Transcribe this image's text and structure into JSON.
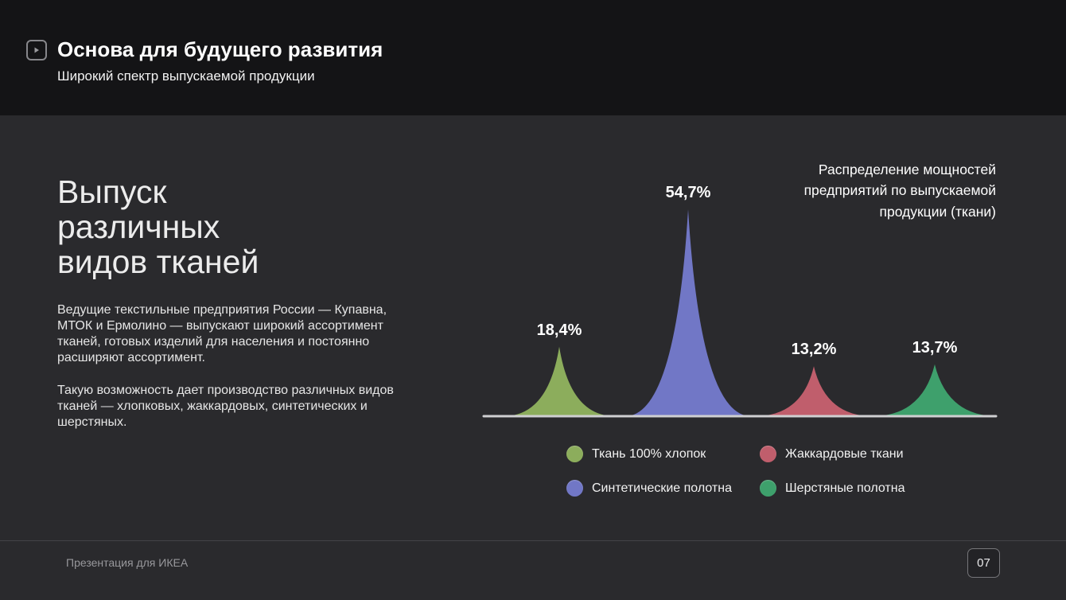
{
  "header": {
    "title": "Основа для будущего развития",
    "subtitle": "Широкий спектр выпускаемой продукции"
  },
  "main": {
    "heading_lines": [
      "Выпуск",
      "различных",
      "видов тканей"
    ],
    "paragraph1": "Ведущие текстильные предприятия России — Купавна, МТОК и Ермолино — выпускают широкий ассортимент тканей, готовых изделий для населения и постоянно расширяют ассортимент.",
    "paragraph2": "Такую возможность дает производство различных видов тканей — хлопковых, жаккардовых, синтетических и шерстяных."
  },
  "chart_data": {
    "type": "area",
    "title": "Распределение мощностей предприятий по выпускаемой продукции (ткани)",
    "categories": [
      "Ткань 100% хлопок",
      "Синтетические полотна",
      "Жаккардовые ткани",
      "Шерстяные полотна"
    ],
    "values": [
      18.4,
      54.7,
      13.2,
      13.7
    ],
    "value_labels": [
      "18,4%",
      "54,7%",
      "13,2%",
      "13,7%"
    ],
    "colors": [
      "#8CAD5C",
      "#7177C6",
      "#C05E6C",
      "#3EA06C"
    ],
    "unit": "%",
    "ylim": [
      0,
      60
    ],
    "grid": false,
    "legend_position": "bottom",
    "legend": [
      {
        "label": "Ткань 100% хлопок",
        "color": "#8CAD5C"
      },
      {
        "label": "Жаккардовые ткани",
        "color": "#C05E6C"
      },
      {
        "label": "Синтетические полотна",
        "color": "#7177C6"
      },
      {
        "label": "Шерстяные полотна",
        "color": "#3EA06C"
      }
    ]
  },
  "footer": {
    "text": "Презентация для ИКЕА",
    "page_number": "07"
  }
}
